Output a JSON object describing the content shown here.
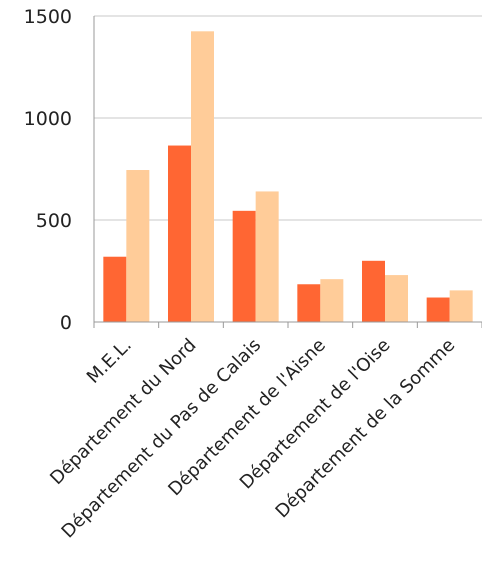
{
  "chart_data": {
    "type": "bar",
    "categories": [
      "M.E.L.",
      "Département du Nord",
      "Département du Pas de Calais",
      "Département de l'Aisne",
      "Département de l'Oise",
      "Département de la Somme"
    ],
    "series": [
      {
        "values": [
          320,
          865,
          545,
          185,
          300,
          120
        ],
        "color": "#ff6633"
      },
      {
        "values": [
          745,
          1425,
          640,
          210,
          230,
          155
        ],
        "color": "#ffcc99"
      }
    ],
    "y_ticks": [
      "0",
      "500",
      "1000",
      "1500"
    ],
    "ylim": [
      0,
      1500
    ],
    "grid": true,
    "legend": "none"
  }
}
